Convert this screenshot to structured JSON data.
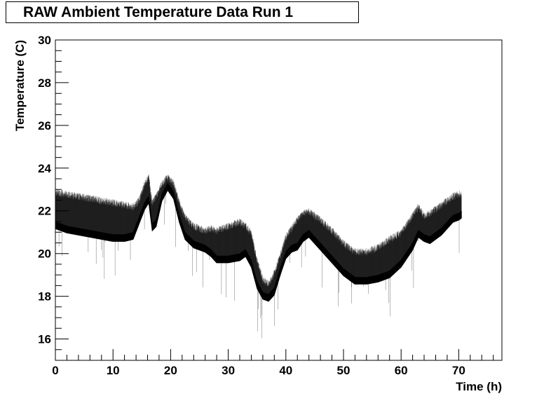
{
  "chart_data": {
    "type": "line",
    "title": "RAW Ambient Temperature Data Run 1",
    "xlabel": "Time (h)",
    "ylabel": "Temperature (C)",
    "xlim": [
      0,
      77.5
    ],
    "ylim": [
      15,
      30
    ],
    "x_ticks": [
      0,
      10,
      20,
      30,
      40,
      50,
      60,
      70
    ],
    "y_ticks": [
      16,
      18,
      20,
      22,
      24,
      26,
      28,
      30
    ],
    "grid": false,
    "legend": "none",
    "line_color": "#000000",
    "series": [
      {
        "style": "dense-noisy-band",
        "x": [
          0,
          2,
          4,
          6,
          8,
          10,
          12,
          13.5,
          14.5,
          15.5,
          16.2,
          16.8,
          17.5,
          18.5,
          19.5,
          20.5,
          21.5,
          22.5,
          24,
          26,
          27,
          28,
          30,
          32,
          33,
          34,
          35,
          36,
          37,
          38,
          39,
          40,
          41,
          42,
          43,
          44,
          45,
          46,
          48,
          50,
          52,
          54,
          56,
          58,
          60,
          62,
          63,
          64,
          65,
          66,
          67,
          68,
          69,
          70,
          70.5
        ],
        "upper": [
          22.8,
          22.7,
          22.6,
          22.5,
          22.4,
          22.3,
          22.2,
          22.1,
          22.4,
          23.2,
          23.5,
          22.3,
          22.6,
          23.2,
          23.5,
          23.2,
          22.3,
          21.6,
          21.2,
          21.0,
          21.1,
          21.0,
          21.2,
          21.4,
          21.2,
          20.9,
          19.6,
          18.7,
          18.5,
          19.0,
          19.8,
          20.7,
          21.1,
          21.5,
          21.8,
          21.9,
          21.7,
          21.5,
          21.0,
          20.4,
          20.0,
          20.0,
          20.2,
          20.6,
          20.9,
          21.7,
          22.1,
          21.7,
          21.8,
          22.0,
          22.2,
          22.4,
          22.6,
          22.7,
          22.7
        ],
        "lower": [
          21.4,
          21.2,
          21.1,
          21.0,
          20.9,
          20.8,
          20.8,
          20.9,
          21.6,
          22.3,
          22.6,
          21.3,
          21.5,
          22.7,
          23.2,
          22.8,
          21.7,
          20.9,
          20.5,
          20.3,
          20.1,
          19.8,
          19.8,
          19.9,
          20.1,
          19.6,
          18.6,
          18.1,
          18.0,
          18.3,
          19.2,
          20.0,
          20.3,
          20.4,
          20.8,
          21.0,
          20.7,
          20.4,
          19.8,
          19.2,
          18.8,
          18.8,
          18.9,
          19.1,
          19.6,
          20.4,
          21.0,
          20.8,
          20.7,
          20.9,
          21.1,
          21.4,
          21.7,
          21.8,
          21.9
        ]
      }
    ]
  }
}
